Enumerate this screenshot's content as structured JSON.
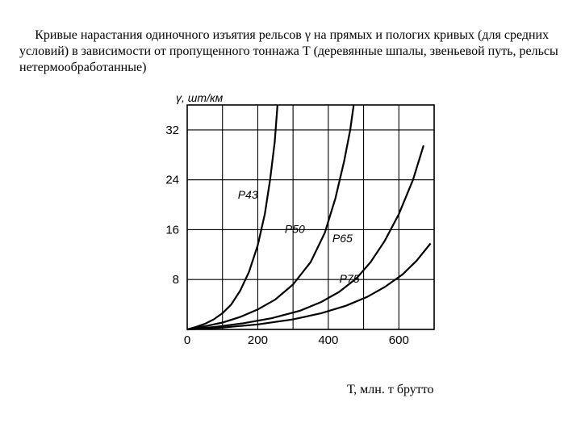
{
  "caption": "Кривые нарастания одиночного изъятия рельсов γ на прямых и пологих кривых (для средних условий) в зависимости от пропущенного тоннажа Т (деревянные шпалы, звеньевой путь, рельсы нетермообработанные)",
  "x_axis_caption": "Т, млн. т брутто",
  "chart": {
    "type": "line",
    "background_color": "#ffffff",
    "line_color": "#000000",
    "grid_color": "#000000",
    "xlim": [
      0,
      700
    ],
    "ylim": [
      0,
      36
    ],
    "xticks": [
      0,
      200,
      400,
      600
    ],
    "yticks": [
      8,
      16,
      24,
      32
    ],
    "xtick_labels": [
      "0",
      "200",
      "400",
      "600"
    ],
    "ytick_labels": [
      "8",
      "16",
      "24",
      "32"
    ],
    "y_title": "γ, шт/км",
    "x_grid": [
      100,
      200,
      300,
      400,
      500,
      600,
      700
    ],
    "y_grid": [
      8,
      16,
      24,
      32
    ],
    "line_width": 2.2,
    "series": [
      {
        "name": "Р43",
        "label_pos": {
          "x": 172,
          "y": 21
        },
        "points": [
          [
            0,
            0
          ],
          [
            25,
            0.4
          ],
          [
            50,
            0.9
          ],
          [
            75,
            1.6
          ],
          [
            100,
            2.6
          ],
          [
            125,
            4.0
          ],
          [
            150,
            6.2
          ],
          [
            175,
            9.2
          ],
          [
            200,
            13.5
          ],
          [
            220,
            18.5
          ],
          [
            235,
            24
          ],
          [
            248,
            30
          ],
          [
            256,
            36
          ]
        ]
      },
      {
        "name": "Р50",
        "label_pos": {
          "x": 305,
          "y": 15.5
        },
        "points": [
          [
            0,
            0
          ],
          [
            50,
            0.5
          ],
          [
            100,
            1.1
          ],
          [
            150,
            2.0
          ],
          [
            200,
            3.2
          ],
          [
            250,
            4.8
          ],
          [
            300,
            7.2
          ],
          [
            350,
            10.8
          ],
          [
            390,
            15.5
          ],
          [
            420,
            21
          ],
          [
            445,
            27
          ],
          [
            462,
            32
          ],
          [
            472,
            36
          ]
        ]
      },
      {
        "name": "Р65",
        "label_pos": {
          "x": 440,
          "y": 14
        },
        "points": [
          [
            0,
            0
          ],
          [
            80,
            0.4
          ],
          [
            160,
            1.0
          ],
          [
            240,
            1.8
          ],
          [
            320,
            3.0
          ],
          [
            380,
            4.4
          ],
          [
            430,
            6.0
          ],
          [
            480,
            8.2
          ],
          [
            520,
            10.8
          ],
          [
            560,
            14.2
          ],
          [
            600,
            18.5
          ],
          [
            640,
            24
          ],
          [
            670,
            29.5
          ]
        ]
      },
      {
        "name": "Р75",
        "label_pos": {
          "x": 460,
          "y": 7.5
        },
        "points": [
          [
            0,
            0
          ],
          [
            100,
            0.3
          ],
          [
            200,
            0.8
          ],
          [
            300,
            1.6
          ],
          [
            380,
            2.6
          ],
          [
            450,
            3.8
          ],
          [
            510,
            5.2
          ],
          [
            560,
            6.8
          ],
          [
            610,
            8.8
          ],
          [
            650,
            11
          ],
          [
            690,
            13.8
          ]
        ]
      }
    ]
  }
}
